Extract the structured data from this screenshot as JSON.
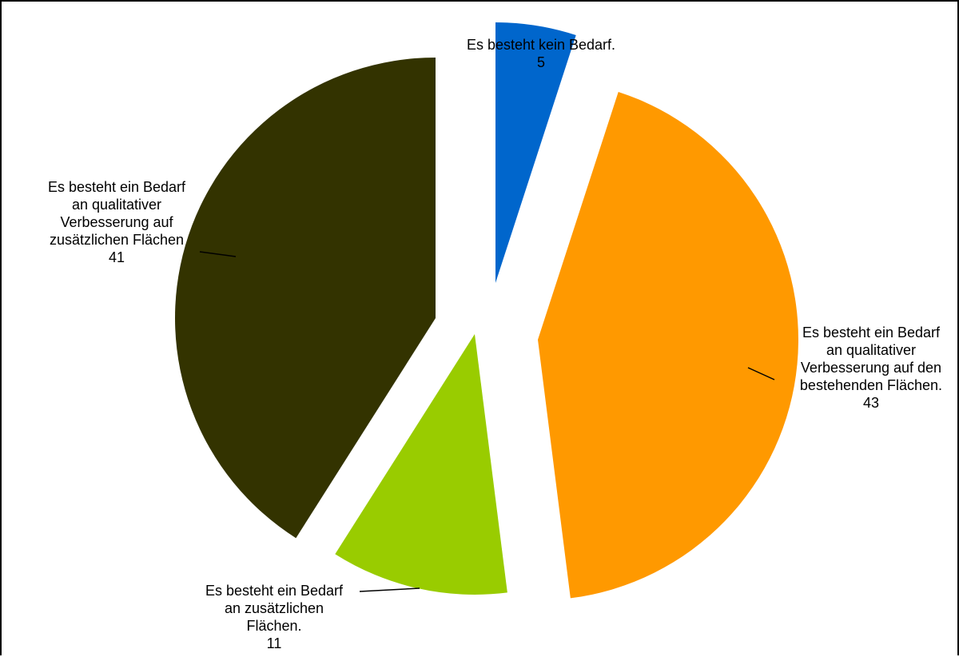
{
  "chart_data": {
    "type": "pie",
    "slices": [
      {
        "label": [
          "Es besteht kein Bedarf."
        ],
        "value": 5,
        "color": "#0066cc"
      },
      {
        "label": [
          "Es besteht ein Bedarf",
          "an qualitativer",
          "Verbesserung auf den",
          "bestehenden Flächen."
        ],
        "value": 43,
        "color": "#ff9900"
      },
      {
        "label": [
          "Es besteht ein Bedarf",
          "an zusätzlichen",
          "Flächen."
        ],
        "value": 11,
        "color": "#99cc00"
      },
      {
        "label": [
          "Es besteht ein Bedarf",
          "an qualitativer",
          "Verbesserung auf",
          "zusätzlichen Flächen"
        ],
        "value": 41,
        "color": "#333300"
      }
    ]
  }
}
